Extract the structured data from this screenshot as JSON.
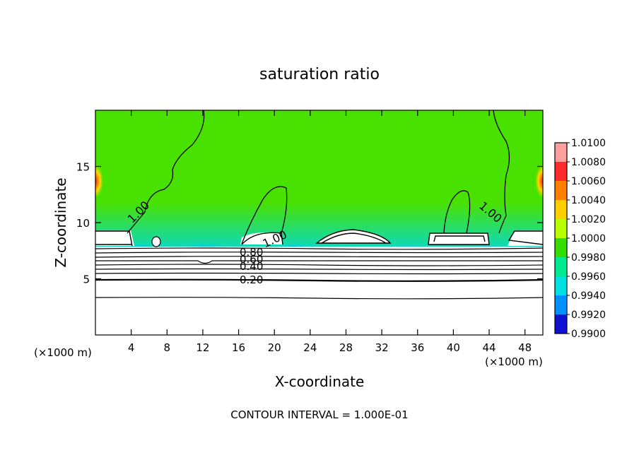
{
  "chart_data": {
    "type": "contour",
    "title": "saturation ratio",
    "xlabel": "X-coordinate",
    "ylabel": "Z-coordinate",
    "x_units": "(×1000 m)",
    "z_units": "(×1000 m)",
    "xlim": [
      0,
      50
    ],
    "ylim": [
      0,
      20
    ],
    "x_ticks": [
      "4",
      "8",
      "12",
      "16",
      "20",
      "24",
      "28",
      "32",
      "36",
      "40",
      "44",
      "48"
    ],
    "y_ticks": [
      "5",
      "10",
      "15"
    ],
    "contour_interval_text": "CONTOUR INTERVAL = 1.000E-01",
    "contour_labels": [
      "1.00",
      "1.00",
      "1.00",
      "0.80",
      "0.60",
      "0.40",
      "0.20"
    ],
    "colorbar": {
      "labels": [
        "1.0100",
        "1.0080",
        "1.0060",
        "1.0040",
        "1.0020",
        "1.0000",
        "0.9980",
        "0.9960",
        "0.9940",
        "0.9920",
        "0.9900"
      ],
      "colors": [
        "#ff9f9f",
        "#ff2a2a",
        "#ff8000",
        "#ffd000",
        "#b8ff00",
        "#33dd00",
        "#00e890",
        "#00e0e0",
        "#0090ff",
        "#1010d0",
        "#6a00b0"
      ]
    }
  }
}
